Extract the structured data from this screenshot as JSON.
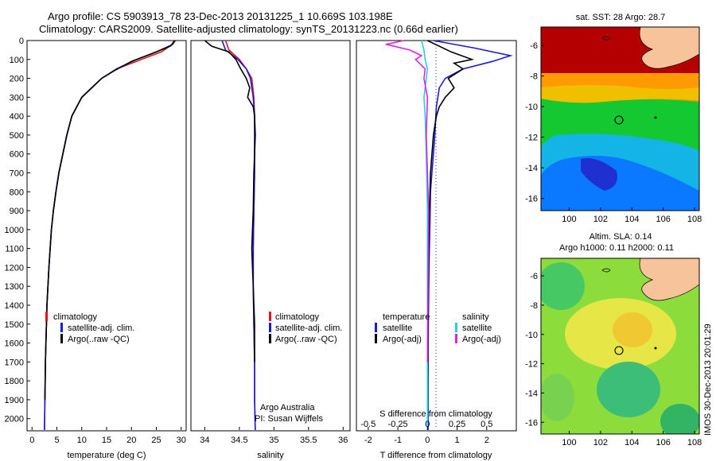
{
  "header": {
    "line1": "Argo profile: CS 5903913_78 23-Dec-2013 20131225_1 10.669S 103.198E",
    "line2": "Climatology: CARS2009. Satellite-adjusted climatology: synTS_20131223.nc (0.66d earlier)"
  },
  "colors": {
    "climatology": "#e01414",
    "satellite": "#1a1adf",
    "argo": "#000000",
    "satellite_salinity": "#1ed2e6",
    "argo_salinity": "#e61ee6",
    "land": "#f7c39a"
  },
  "chart_data": [
    {
      "type": "line",
      "id": "temperature",
      "xlabel": "temperature (deg C)",
      "ylabel": "",
      "xlim": [
        -1,
        31
      ],
      "ylim": [
        2060,
        0
      ],
      "xticks": [
        "0",
        "5",
        "10",
        "15",
        "20",
        "25",
        "30"
      ],
      "xtick_values": [
        0,
        5,
        10,
        15,
        20,
        25,
        30
      ],
      "yticks": [
        "0",
        "100",
        "200",
        "300",
        "400",
        "500",
        "600",
        "700",
        "800",
        "900",
        "1000",
        "1100",
        "1200",
        "1300",
        "1400",
        "1500",
        "1600",
        "1700",
        "1800",
        "1900",
        "2000"
      ],
      "ytick_values": [
        0,
        100,
        200,
        300,
        400,
        500,
        600,
        700,
        800,
        900,
        1000,
        1100,
        1200,
        1300,
        1400,
        1500,
        1600,
        1700,
        1800,
        1900,
        2000
      ],
      "legend": [
        "climatology",
        "satellite-adj. clim.",
        "Argo(..raw -QC)"
      ],
      "series": [
        {
          "name": "climatology",
          "color": "#e01414",
          "x": [
            28.5,
            28.2,
            26,
            22,
            17,
            14,
            12,
            10,
            9,
            8,
            7,
            6.2,
            5.4,
            4.8,
            4.3,
            3.9,
            3.4,
            3,
            2.7,
            2.5
          ],
          "y": [
            0,
            20,
            60,
            100,
            150,
            200,
            250,
            300,
            350,
            400,
            500,
            600,
            700,
            800,
            900,
            1000,
            1200,
            1400,
            1700,
            2060
          ]
        },
        {
          "name": "satellite-adj. clim.",
          "color": "#1a1adf",
          "x": [
            28.8,
            28.3,
            25,
            21,
            17,
            14,
            12,
            10,
            9,
            8,
            7,
            6.2,
            5.4,
            4.8,
            4.3,
            3.9,
            3.4,
            3,
            2.7,
            2.5
          ],
          "y": [
            0,
            20,
            60,
            100,
            150,
            200,
            250,
            300,
            350,
            400,
            500,
            600,
            700,
            800,
            900,
            1000,
            1200,
            1400,
            1700,
            2060
          ]
        },
        {
          "name": "Argo(..raw -QC)",
          "color": "#000000",
          "x": [
            28.8,
            27.8,
            24,
            20,
            16.5,
            14,
            12,
            10,
            9,
            8,
            7,
            6.2,
            5.4,
            4.8,
            4.3,
            3.9,
            3.4,
            3,
            2.7,
            2.6
          ],
          "y": [
            0,
            30,
            70,
            110,
            160,
            200,
            250,
            300,
            350,
            400,
            500,
            600,
            700,
            800,
            900,
            1000,
            1200,
            1400,
            1700,
            1900
          ]
        }
      ]
    },
    {
      "type": "line",
      "id": "salinity",
      "xlabel": "salinity",
      "ylabel": "",
      "xlim": [
        33.8,
        36.1
      ],
      "ylim": [
        2060,
        0
      ],
      "xticks": [
        "34",
        "34.5",
        "35",
        "35.5",
        "36"
      ],
      "xtick_values": [
        34,
        34.5,
        35,
        35.5,
        36
      ],
      "legend": [
        "climatology",
        "satellite-adj. clim.",
        "Argo(..raw -QC)"
      ],
      "annotations": [
        "Argo Australia",
        "PI: Susan Wijffels"
      ],
      "series": [
        {
          "name": "climatology",
          "color": "#e01414",
          "x": [
            34.3,
            34.35,
            34.5,
            34.6,
            34.68,
            34.71,
            34.72,
            34.72,
            34.72,
            34.71,
            34.7,
            34.7,
            34.71,
            34.72,
            34.72,
            34.73
          ],
          "y": [
            0,
            50,
            100,
            150,
            200,
            300,
            400,
            500,
            700,
            900,
            1100,
            1300,
            1500,
            1700,
            1900,
            2060
          ]
        },
        {
          "name": "satellite-adj. clim.",
          "color": "#1a1adf",
          "x": [
            34.25,
            34.3,
            34.48,
            34.6,
            34.66,
            34.7,
            34.72,
            34.72,
            34.72,
            34.71,
            34.7,
            34.7,
            34.71,
            34.72,
            34.72,
            34.73
          ],
          "y": [
            0,
            50,
            100,
            150,
            200,
            300,
            400,
            500,
            700,
            900,
            1100,
            1300,
            1500,
            1700,
            1900,
            2060
          ]
        },
        {
          "name": "Argo(..raw -QC)",
          "color": "#000000",
          "x": [
            34,
            34.1,
            34.35,
            34.45,
            34.52,
            34.6,
            34.65,
            34.62,
            34.7,
            34.72,
            34.73,
            34.71,
            34.7,
            34.68,
            34.7,
            34.72,
            34.72
          ],
          "y": [
            0,
            30,
            60,
            100,
            150,
            200,
            250,
            300,
            350,
            400,
            500,
            700,
            900,
            1100,
            1300,
            1500,
            1700
          ]
        }
      ]
    },
    {
      "type": "line",
      "id": "difference",
      "xlabel": "T difference from climatology",
      "x2label": "S difference from climatology",
      "ylabel": "",
      "xlim": [
        -2.4,
        3.0
      ],
      "x2lim": [
        -0.6,
        0.75
      ],
      "ylim": [
        2060,
        0
      ],
      "xticks": [
        "-2",
        "-1",
        "0",
        "1",
        "2"
      ],
      "xtick_values": [
        -2,
        -1,
        0,
        1,
        2
      ],
      "x2ticks": [
        "-0.5",
        "-0.25",
        "0",
        "0.25",
        "0.5"
      ],
      "x2tick_values": [
        -0.5,
        -0.25,
        0,
        0.25,
        0.5
      ],
      "legend": [
        "temperature",
        "satellite",
        "Argo(-adj)",
        "salinity",
        "satellite",
        "Argo(-adj)"
      ],
      "series": [
        {
          "name": "temperature satellite",
          "color": "#1a1adf",
          "x": [
            0.2,
            1.6,
            2.8,
            2.2,
            1.2,
            0.6,
            0.4,
            0.35,
            0.3,
            0.28,
            0.25,
            0.2,
            0.15,
            0.1,
            0.08,
            0.05,
            0.03,
            0.02,
            0.02
          ],
          "y": [
            0,
            40,
            80,
            110,
            150,
            200,
            250,
            300,
            350,
            400,
            500,
            600,
            700,
            800,
            1000,
            1200,
            1500,
            1800,
            2060
          ]
        },
        {
          "name": "temperature Argo(-adj)",
          "color": "#000000",
          "x": [
            0.0,
            0.8,
            1.5,
            0.9,
            1.2,
            0.7,
            0.9,
            0.6,
            0.4,
            0.3,
            0.2,
            0.1,
            0.05,
            0.0
          ],
          "y": [
            0,
            60,
            100,
            120,
            150,
            200,
            250,
            300,
            350,
            400,
            500,
            700,
            1000,
            1900
          ]
        },
        {
          "name": "salinity satellite",
          "color": "#1ed2e6",
          "x": [
            -0.05,
            -0.03,
            -0.02,
            0.0,
            -0.01,
            -0.02,
            -0.03,
            -0.02,
            -0.01,
            0.0,
            0.0,
            0.0
          ],
          "y": [
            0,
            50,
            100,
            150,
            200,
            250,
            300,
            400,
            600,
            900,
            1300,
            2060
          ]
        },
        {
          "name": "salinity Argo(-adj)",
          "color": "#e61ee6",
          "x": [
            -0.2,
            -0.35,
            -0.15,
            -0.05,
            -0.1,
            -0.02,
            -0.03,
            0.0,
            -0.01,
            0.01,
            0.0
          ],
          "y": [
            0,
            20,
            50,
            80,
            100,
            150,
            200,
            300,
            500,
            900,
            1700
          ]
        }
      ]
    },
    {
      "type": "heatmap",
      "id": "sst_map",
      "title": "sat. SST: 28 Argo: 28.7",
      "xlim": [
        98.2,
        108.3
      ],
      "ylim": [
        -16.8,
        -4.8
      ],
      "xticks": [
        "100",
        "102",
        "104",
        "106",
        "108"
      ],
      "xtick_values": [
        100,
        102,
        104,
        106,
        108
      ],
      "yticks": [
        "-6",
        "-8",
        "-10",
        "-12",
        "-14",
        "-16"
      ],
      "ytick_values": [
        -6,
        -8,
        -10,
        -12,
        -14,
        -16
      ],
      "argo_position": {
        "lon": 103.198,
        "lat": -10.669
      }
    },
    {
      "type": "heatmap",
      "id": "sla_map",
      "title": "Altim. SLA: 0.14",
      "subtitle": "Argo h1000: 0.11 h2000: 0.11",
      "xlim": [
        98.2,
        108.3
      ],
      "ylim": [
        -16.8,
        -4.8
      ],
      "xticks": [
        "100",
        "102",
        "104",
        "106",
        "108"
      ],
      "xtick_values": [
        100,
        102,
        104,
        106,
        108
      ],
      "yticks": [
        "-6",
        "-8",
        "-10",
        "-12",
        "-14",
        "-16"
      ],
      "ytick_values": [
        -6,
        -8,
        -10,
        -12,
        -14,
        -16
      ],
      "argo_position": {
        "lon": 103.198,
        "lat": -10.669
      }
    }
  ],
  "stamp": "IMOS 30-Dec-2013 20:01:29"
}
